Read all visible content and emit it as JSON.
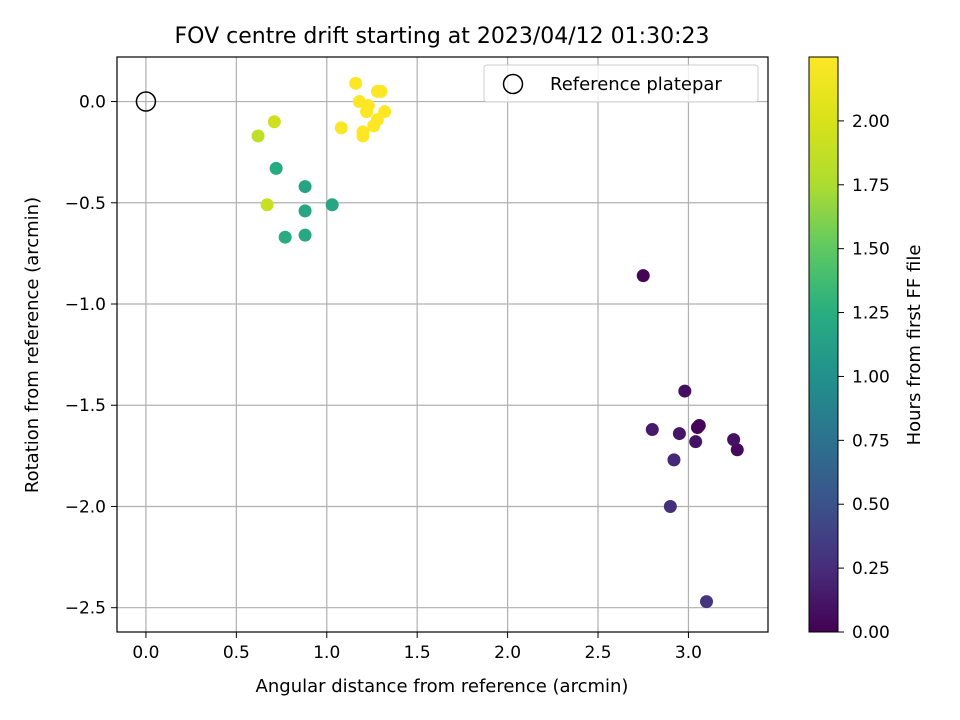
{
  "chart_data": {
    "type": "scatter",
    "title": "FOV centre drift starting at 2023/04/12 01:30:23",
    "xlabel": "Angular distance from reference (arcmin)",
    "ylabel": "Rotation from reference (arcmin)",
    "xlim": [
      -0.16,
      3.44
    ],
    "ylim": [
      -2.62,
      0.22
    ],
    "x_ticks": [
      0.0,
      0.5,
      1.0,
      1.5,
      2.0,
      2.5,
      3.0
    ],
    "x_tick_labels": [
      "0.0",
      "0.5",
      "1.0",
      "1.5",
      "2.0",
      "2.5",
      "3.0"
    ],
    "y_ticks": [
      0.0,
      -0.5,
      -1.0,
      -1.5,
      -2.0,
      -2.5
    ],
    "y_tick_labels": [
      "0.0",
      "−0.5",
      "−1.0",
      "−1.5",
      "−2.0",
      "−2.5"
    ],
    "grid": true,
    "legend": {
      "placement": "top-right",
      "entries": [
        {
          "label": "Reference platepar",
          "marker": "open-circle"
        }
      ]
    },
    "reference_point": {
      "x": 0.0,
      "y": 0.0
    },
    "colorbar": {
      "label": "Hours from first FF file",
      "colormap": "viridis",
      "range": [
        0.0,
        2.25
      ],
      "ticks": [
        0.0,
        0.25,
        0.5,
        0.75,
        1.0,
        1.25,
        1.5,
        1.75,
        2.0
      ],
      "tick_labels": [
        "0.00",
        "0.25",
        "0.50",
        "0.75",
        "1.00",
        "1.25",
        "1.50",
        "1.75",
        "2.00"
      ]
    },
    "points": [
      {
        "x": 2.75,
        "y": -0.86,
        "hours": 0.02
      },
      {
        "x": 3.06,
        "y": -1.6,
        "hours": 0.03
      },
      {
        "x": 3.05,
        "y": -1.61,
        "hours": 0.03
      },
      {
        "x": 3.27,
        "y": -1.72,
        "hours": 0.05
      },
      {
        "x": 2.98,
        "y": -1.43,
        "hours": 0.08
      },
      {
        "x": 3.25,
        "y": -1.67,
        "hours": 0.09
      },
      {
        "x": 3.04,
        "y": -1.68,
        "hours": 0.1
      },
      {
        "x": 2.95,
        "y": -1.64,
        "hours": 0.12
      },
      {
        "x": 2.8,
        "y": -1.62,
        "hours": 0.15
      },
      {
        "x": 2.92,
        "y": -1.77,
        "hours": 0.22
      },
      {
        "x": 2.9,
        "y": -2.0,
        "hours": 0.27
      },
      {
        "x": 3.1,
        "y": -2.47,
        "hours": 0.3
      },
      {
        "x": 1.03,
        "y": -0.51,
        "hours": 1.18
      },
      {
        "x": 0.88,
        "y": -0.42,
        "hours": 1.16
      },
      {
        "x": 0.88,
        "y": -0.54,
        "hours": 1.18
      },
      {
        "x": 0.88,
        "y": -0.66,
        "hours": 1.2
      },
      {
        "x": 0.72,
        "y": -0.33,
        "hours": 1.22
      },
      {
        "x": 0.77,
        "y": -0.67,
        "hours": 1.24
      },
      {
        "x": 0.67,
        "y": -0.51,
        "hours": 1.9
      },
      {
        "x": 0.62,
        "y": -0.17,
        "hours": 1.85
      },
      {
        "x": 0.71,
        "y": -0.1,
        "hours": 1.95
      },
      {
        "x": 1.16,
        "y": 0.09,
        "hours": 2.25
      },
      {
        "x": 1.18,
        "y": 0.0,
        "hours": 2.25
      },
      {
        "x": 1.23,
        "y": -0.02,
        "hours": 2.25
      },
      {
        "x": 1.28,
        "y": 0.05,
        "hours": 2.25
      },
      {
        "x": 1.3,
        "y": 0.05,
        "hours": 2.25
      },
      {
        "x": 1.32,
        "y": -0.05,
        "hours": 2.25
      },
      {
        "x": 1.22,
        "y": -0.05,
        "hours": 2.25
      },
      {
        "x": 1.28,
        "y": -0.09,
        "hours": 2.25
      },
      {
        "x": 1.26,
        "y": -0.12,
        "hours": 2.25
      },
      {
        "x": 1.08,
        "y": -0.13,
        "hours": 2.22
      },
      {
        "x": 1.2,
        "y": -0.15,
        "hours": 2.25
      },
      {
        "x": 1.2,
        "y": -0.17,
        "hours": 2.25
      }
    ]
  }
}
